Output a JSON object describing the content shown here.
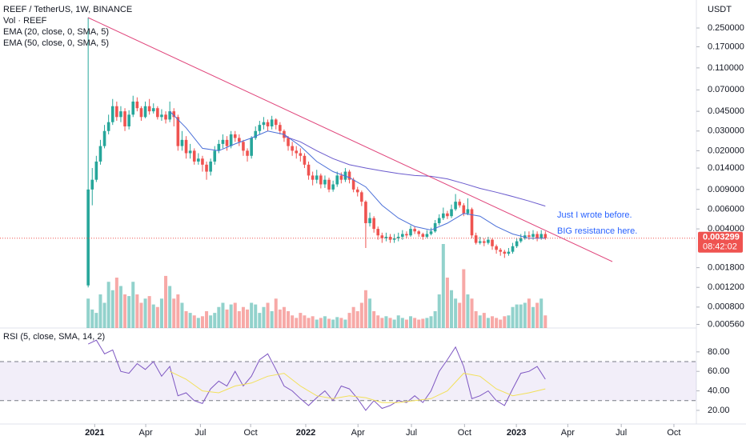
{
  "chart_data": {
    "type": "candlestick",
    "title": "REEF / TetherUS, 1W, BINANCE",
    "volume_label": "Vol · REEF",
    "currency": "USDT",
    "log_scale": true,
    "up_color": "#26a69a",
    "down_color": "#ef5350",
    "open": [
      0.00125,
      0.009,
      0.011,
      0.016,
      0.022,
      0.03,
      0.036,
      0.05,
      0.04,
      0.045,
      0.033,
      0.042,
      0.055,
      0.048,
      0.04,
      0.05,
      0.045,
      0.048,
      0.04,
      0.042,
      0.038,
      0.045,
      0.04,
      0.022,
      0.025,
      0.019,
      0.02,
      0.016,
      0.017,
      0.015,
      0.013,
      0.016,
      0.02,
      0.023,
      0.025,
      0.022,
      0.028,
      0.026,
      0.024,
      0.02,
      0.018,
      0.026,
      0.03,
      0.034,
      0.036,
      0.033,
      0.038,
      0.034,
      0.03,
      0.026,
      0.022,
      0.02,
      0.019,
      0.018,
      0.015,
      0.012,
      0.011,
      0.012,
      0.01,
      0.011,
      0.009,
      0.01,
      0.012,
      0.011,
      0.013,
      0.011,
      0.009,
      0.0085,
      0.007,
      0.0045,
      0.005,
      0.004,
      0.0035,
      0.0033,
      0.0034,
      0.0032,
      0.0033,
      0.0034,
      0.0036,
      0.0035,
      0.004,
      0.0038,
      0.0036,
      0.0034,
      0.0036,
      0.0038,
      0.0045,
      0.005,
      0.0055,
      0.0052,
      0.006,
      0.007,
      0.0065,
      0.0055,
      0.006,
      0.0035,
      0.003,
      0.0031,
      0.003,
      0.0032,
      0.0028,
      0.0026,
      0.0025,
      0.0024,
      0.0025,
      0.0028,
      0.0031,
      0.0033,
      0.0035,
      0.0034,
      0.0036,
      0.0033,
      0.0036
    ],
    "high": [
      0.31,
      0.014,
      0.018,
      0.025,
      0.034,
      0.042,
      0.058,
      0.055,
      0.05,
      0.048,
      0.046,
      0.062,
      0.06,
      0.05,
      0.055,
      0.058,
      0.053,
      0.05,
      0.047,
      0.045,
      0.055,
      0.048,
      0.042,
      0.03,
      0.027,
      0.023,
      0.021,
      0.019,
      0.018,
      0.016,
      0.017,
      0.022,
      0.025,
      0.028,
      0.027,
      0.03,
      0.03,
      0.028,
      0.025,
      0.021,
      0.027,
      0.033,
      0.037,
      0.04,
      0.038,
      0.041,
      0.039,
      0.036,
      0.031,
      0.027,
      0.024,
      0.022,
      0.021,
      0.019,
      0.016,
      0.013,
      0.0135,
      0.0125,
      0.012,
      0.0115,
      0.0108,
      0.013,
      0.0128,
      0.014,
      0.0135,
      0.0115,
      0.0095,
      0.0088,
      0.0072,
      0.0056,
      0.0052,
      0.0042,
      0.0037,
      0.0037,
      0.0036,
      0.0036,
      0.0037,
      0.0039,
      0.0038,
      0.0043,
      0.0042,
      0.0039,
      0.0037,
      0.0039,
      0.0041,
      0.0048,
      0.0054,
      0.0062,
      0.0058,
      0.0066,
      0.0082,
      0.0074,
      0.0068,
      0.0075,
      0.0062,
      0.0037,
      0.0034,
      0.0033,
      0.0034,
      0.0033,
      0.0029,
      0.0027,
      0.0026,
      0.0027,
      0.003,
      0.0033,
      0.0036,
      0.0038,
      0.0038,
      0.0039,
      0.0038,
      0.0039,
      0.0038
    ],
    "low": [
      0.0012,
      0.0065,
      0.0105,
      0.015,
      0.021,
      0.028,
      0.034,
      0.037,
      0.036,
      0.03,
      0.031,
      0.04,
      0.045,
      0.037,
      0.039,
      0.042,
      0.043,
      0.038,
      0.037,
      0.035,
      0.036,
      0.033,
      0.02,
      0.02,
      0.017,
      0.017,
      0.015,
      0.015,
      0.013,
      0.011,
      0.012,
      0.015,
      0.019,
      0.021,
      0.02,
      0.021,
      0.024,
      0.022,
      0.018,
      0.016,
      0.017,
      0.025,
      0.028,
      0.031,
      0.03,
      0.031,
      0.031,
      0.028,
      0.024,
      0.02,
      0.018,
      0.017,
      0.016,
      0.014,
      0.011,
      0.0098,
      0.0102,
      0.0092,
      0.0093,
      0.0085,
      0.0086,
      0.0095,
      0.0102,
      0.0105,
      0.0102,
      0.0085,
      0.0078,
      0.0064,
      0.0027,
      0.0042,
      0.0037,
      0.0032,
      0.003,
      0.0031,
      0.003,
      0.003,
      0.0031,
      0.0032,
      0.0033,
      0.0034,
      0.0036,
      0.0034,
      0.0032,
      0.0033,
      0.0035,
      0.0037,
      0.0043,
      0.0048,
      0.0049,
      0.005,
      0.0058,
      0.0062,
      0.0052,
      0.0053,
      0.0033,
      0.0029,
      0.0029,
      0.0028,
      0.0029,
      0.0026,
      0.0024,
      0.0023,
      0.0022,
      0.0023,
      0.0024,
      0.0027,
      0.003,
      0.0032,
      0.0032,
      0.0032,
      0.0031,
      0.0032,
      0.0032
    ],
    "close": [
      0.009,
      0.011,
      0.016,
      0.022,
      0.03,
      0.036,
      0.05,
      0.04,
      0.045,
      0.033,
      0.042,
      0.055,
      0.048,
      0.04,
      0.05,
      0.045,
      0.048,
      0.04,
      0.042,
      0.038,
      0.045,
      0.04,
      0.022,
      0.025,
      0.019,
      0.02,
      0.016,
      0.017,
      0.015,
      0.013,
      0.016,
      0.02,
      0.023,
      0.025,
      0.022,
      0.028,
      0.026,
      0.024,
      0.02,
      0.018,
      0.026,
      0.03,
      0.034,
      0.036,
      0.033,
      0.038,
      0.034,
      0.03,
      0.026,
      0.022,
      0.02,
      0.019,
      0.018,
      0.015,
      0.012,
      0.011,
      0.012,
      0.01,
      0.011,
      0.009,
      0.01,
      0.012,
      0.011,
      0.013,
      0.011,
      0.009,
      0.0085,
      0.007,
      0.0045,
      0.005,
      0.004,
      0.0035,
      0.0033,
      0.0034,
      0.0032,
      0.0033,
      0.0034,
      0.0036,
      0.0035,
      0.004,
      0.0038,
      0.0036,
      0.0034,
      0.0036,
      0.0038,
      0.0045,
      0.005,
      0.0055,
      0.0052,
      0.006,
      0.007,
      0.0065,
      0.0055,
      0.006,
      0.0035,
      0.003,
      0.0031,
      0.003,
      0.0032,
      0.0028,
      0.0026,
      0.0025,
      0.0024,
      0.0025,
      0.0028,
      0.0031,
      0.0033,
      0.0035,
      0.0034,
      0.0036,
      0.0033,
      0.0036,
      0.003299
    ],
    "volume": [
      35,
      22,
      18,
      40,
      30,
      55,
      45,
      60,
      50,
      40,
      38,
      55,
      40,
      30,
      35,
      38,
      28,
      25,
      35,
      62,
      50,
      35,
      40,
      30,
      20,
      18,
      15,
      12,
      14,
      20,
      15,
      18,
      25,
      30,
      22,
      28,
      30,
      20,
      25,
      22,
      30,
      28,
      18,
      25,
      30,
      20,
      35,
      22,
      25,
      20,
      15,
      12,
      18,
      15,
      12,
      14,
      10,
      12,
      14,
      11,
      10,
      13,
      12,
      10,
      18,
      25,
      20,
      30,
      45,
      35,
      20,
      15,
      12,
      14,
      12,
      10,
      15,
      12,
      10,
      14,
      12,
      10,
      11,
      12,
      14,
      20,
      40,
      100,
      60,
      45,
      35,
      30,
      70,
      40,
      35,
      20,
      15,
      18,
      12,
      14,
      12,
      10,
      14,
      15,
      25,
      28,
      28,
      30,
      35,
      25,
      30,
      35,
      15
    ],
    "series": [
      {
        "name": "EMA (20, close, 0, SMA, 5)",
        "color": "#4a6fd8",
        "x": [
          20,
          24,
          28,
          32,
          36,
          40,
          44,
          48,
          52,
          56,
          60,
          64,
          68,
          72,
          76,
          80,
          84,
          88,
          92,
          96,
          100,
          104,
          108,
          112
        ],
        "values": [
          0.045,
          0.032,
          0.021,
          0.02,
          0.023,
          0.026,
          0.03,
          0.028,
          0.022,
          0.016,
          0.013,
          0.0115,
          0.0095,
          0.0065,
          0.005,
          0.0042,
          0.0039,
          0.0045,
          0.0055,
          0.0052,
          0.0042,
          0.0036,
          0.0033,
          0.0033
        ]
      },
      {
        "name": "EMA (50, close, 0, SMA, 5)",
        "color": "#6a5acd",
        "x": [
          48,
          52,
          56,
          60,
          64,
          68,
          72,
          76,
          80,
          84,
          88,
          92,
          96,
          100,
          104,
          108,
          112
        ],
        "values": [
          0.027,
          0.024,
          0.02,
          0.017,
          0.015,
          0.014,
          0.0132,
          0.0125,
          0.012,
          0.0118,
          0.0112,
          0.0102,
          0.0092,
          0.0085,
          0.0078,
          0.0071,
          0.0064
        ]
      }
    ],
    "ylim": [
      0.00052,
      0.445
    ],
    "yticks": [
      {
        "value": 0.25,
        "label": "0.250000"
      },
      {
        "value": 0.17,
        "label": "0.170000"
      },
      {
        "value": 0.11,
        "label": "0.110000"
      },
      {
        "value": 0.07,
        "label": "0.070000"
      },
      {
        "value": 0.045,
        "label": "0.045000"
      },
      {
        "value": 0.03,
        "label": "0.030000"
      },
      {
        "value": 0.02,
        "label": "0.020000"
      },
      {
        "value": 0.014,
        "label": "0.014000"
      },
      {
        "value": 0.009,
        "label": "0.009000"
      },
      {
        "value": 0.006,
        "label": "0.006000"
      },
      {
        "value": 0.004,
        "label": "0.004000"
      },
      {
        "value": 0.0018,
        "label": "0.001800"
      },
      {
        "value": 0.0012,
        "label": "0.001200"
      },
      {
        "value": 0.0008,
        "label": "0.000800"
      },
      {
        "value": 0.00056,
        "label": "0.000560"
      }
    ],
    "xlim": [
      -21.6,
      149
    ],
    "xticks": [
      {
        "value": 1.6,
        "label": "2021"
      },
      {
        "value": 14.1,
        "label": "Apr"
      },
      {
        "value": 27.5,
        "label": "Jul"
      },
      {
        "value": 39.8,
        "label": "Oct"
      },
      {
        "value": 53.3,
        "label": "2022"
      },
      {
        "value": 66.1,
        "label": "Apr"
      },
      {
        "value": 79.2,
        "label": "Jul"
      },
      {
        "value": 92.2,
        "label": "Oct"
      },
      {
        "value": 104.9,
        "label": "2023"
      },
      {
        "value": 117.5,
        "label": "Apr"
      },
      {
        "value": 130.6,
        "label": "Jul"
      },
      {
        "value": 143.5,
        "label": "Oct"
      }
    ],
    "last_price": 0.003299,
    "countdown": "08:42:02",
    "annotations": [
      "Just I wrote before.",
      "BIG resistance here."
    ],
    "rsi": {
      "title": "RSI (5, close, SMA, 14, 2)",
      "ylim": [
        6,
        104.5
      ],
      "yticks": [
        {
          "value": 80,
          "label": "80.00"
        },
        {
          "value": 60,
          "label": "60.00"
        },
        {
          "value": 40,
          "label": "40.00"
        },
        {
          "value": 20,
          "label": "20.00"
        }
      ],
      "band": [
        30,
        70
      ],
      "band_color": "#7e57c2",
      "series": [
        {
          "color": "#7e57c2",
          "x": [
            0,
            2,
            4,
            6,
            8,
            10,
            12,
            14,
            16,
            18,
            20,
            22,
            24,
            26,
            28,
            30,
            32,
            34,
            36,
            38,
            40,
            42,
            44,
            46,
            48,
            50,
            52,
            54,
            56,
            58,
            60,
            62,
            64,
            66,
            68,
            70,
            72,
            74,
            76,
            78,
            80,
            82,
            84,
            86,
            88,
            90,
            92,
            94,
            96,
            98,
            100,
            102,
            104,
            106,
            108,
            110,
            112
          ],
          "values": [
            88,
            92,
            78,
            82,
            60,
            58,
            68,
            62,
            70,
            55,
            65,
            35,
            38,
            30,
            27,
            42,
            50,
            45,
            60,
            45,
            55,
            72,
            78,
            62,
            45,
            40,
            32,
            25,
            33,
            40,
            30,
            45,
            42,
            32,
            20,
            30,
            22,
            25,
            30,
            28,
            35,
            28,
            40,
            60,
            72,
            85,
            65,
            32,
            35,
            40,
            30,
            25,
            42,
            58,
            60,
            65,
            52
          ]
        },
        {
          "color": "#f2e05a",
          "x": [
            20,
            24,
            28,
            32,
            36,
            40,
            44,
            48,
            52,
            56,
            60,
            64,
            68,
            72,
            76,
            80,
            84,
            88,
            92,
            96,
            100,
            104,
            108,
            112
          ],
          "values": [
            60,
            52,
            40,
            38,
            45,
            48,
            55,
            58,
            45,
            35,
            32,
            35,
            33,
            28,
            28,
            30,
            32,
            40,
            58,
            55,
            42,
            35,
            38,
            42
          ]
        }
      ]
    }
  }
}
